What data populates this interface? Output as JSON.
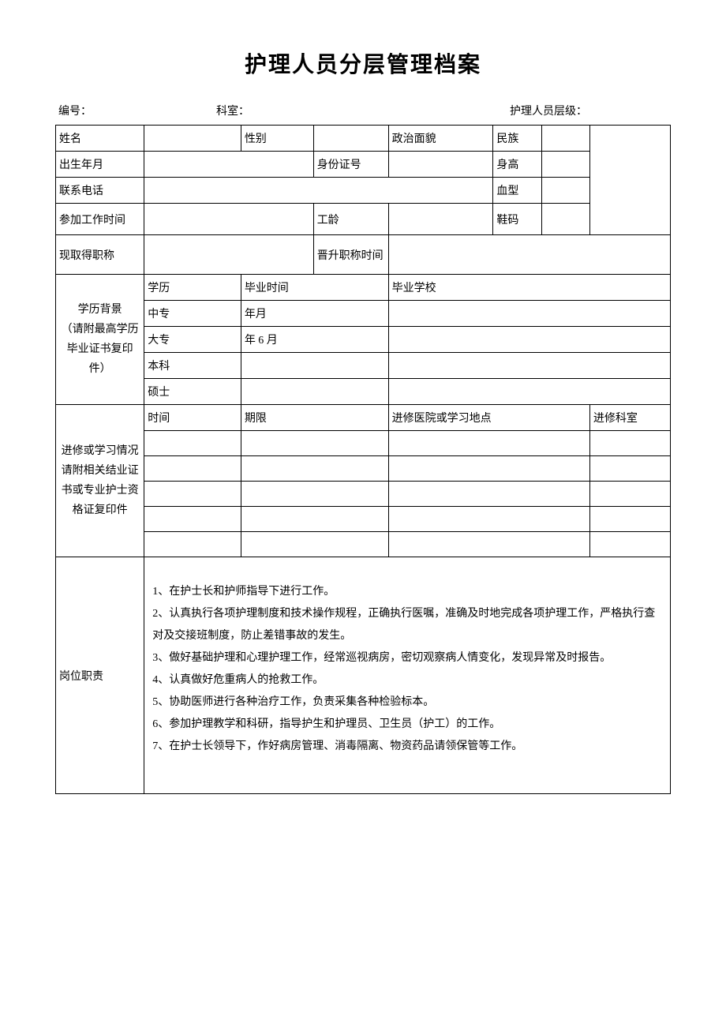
{
  "title": "护理人员分层管理档案",
  "header": {
    "number_label": "编号：",
    "dept_label": "科室：",
    "level_label": "护理人员层级："
  },
  "row1": {
    "name_label": "姓名",
    "gender_label": "性别",
    "political_label": "政治面貌",
    "ethnic_label": "民族"
  },
  "row2": {
    "birth_label": "出生年月",
    "id_label": "身份证号",
    "height_label": "身高"
  },
  "row3": {
    "phone_label": "联系电话",
    "blood_label": "血型"
  },
  "row4": {
    "work_start_label": "参加工作时间",
    "seniority_label": "工龄",
    "shoe_label": "鞋码"
  },
  "row5": {
    "current_title_label": "现取得职称",
    "promotion_time_label": "晋升职称时间"
  },
  "education": {
    "section_label": "学历背景\n（请附最高学历毕业证书复印件）",
    "degree_label": "学历",
    "grad_time_label": "毕业时间",
    "grad_school_label": "毕业学校",
    "level1": "中专",
    "level1_time": "年月",
    "level2": "大专",
    "level2_time": "年 6 月",
    "level3": "本科",
    "level4": "硕士"
  },
  "training": {
    "section_label": "进修或学习情况请附相关结业证书或专业护士资格证复印件",
    "time_label": "时间",
    "duration_label": "期限",
    "location_label": "进修医院或学习地点",
    "dept_label": "进修科室"
  },
  "duties": {
    "label": "岗位职责",
    "items": [
      "1、在护士长和护师指导下进行工作。",
      "2、认真执行各项护理制度和技术操作规程，正确执行医嘱，准确及时地完成各项护理工作，严格执行查对及交接班制度，防止差错事故的发生。",
      "3、做好基础护理和心理护理工作，经常巡视病房，密切观察病人情变化，发现异常及时报告。",
      "4、认真做好危重病人的抢救工作。",
      "5、协助医师进行各种治疗工作，负责采集各种检验标本。",
      "6、参加护理教学和科研，指导护生和护理员、卫生员（护工）的工作。",
      "7、在护士长领导下，作好病房管理、消毒隔离、物资药品请领保管等工作。"
    ]
  },
  "styles": {
    "border_color": "#000000",
    "background_color": "#ffffff",
    "font_size_title": 28,
    "font_size_body": 14,
    "col_widths": {
      "c1": 110,
      "c2": 120,
      "c3": 90,
      "c4": 90,
      "c5": 130,
      "c6": 60,
      "c7": 60,
      "c8": 100
    }
  }
}
